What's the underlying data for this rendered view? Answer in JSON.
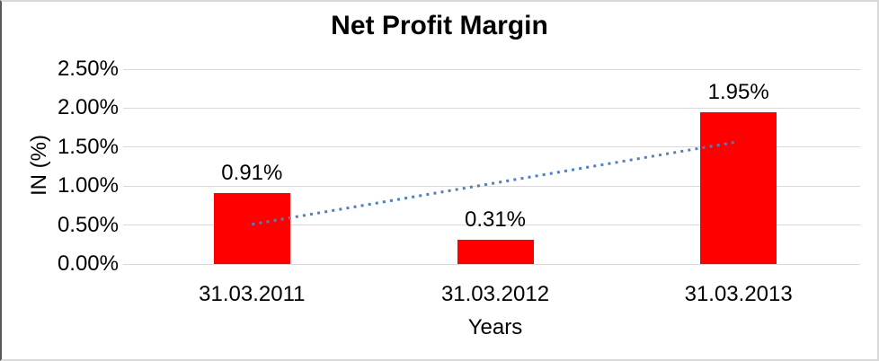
{
  "chart_data": {
    "type": "bar",
    "title": "Net Profit Margin",
    "xlabel": "Years",
    "ylabel": "IN (%)",
    "categories": [
      "31.03.2011",
      "31.03.2012",
      "31.03.2013"
    ],
    "values": [
      0.91,
      0.31,
      1.95
    ],
    "data_labels": [
      "0.91%",
      "0.31%",
      "1.95%"
    ],
    "ylim": [
      0,
      2.5
    ],
    "yticks": [
      0,
      0.5,
      1.0,
      1.5,
      2.0,
      2.5
    ],
    "ytick_labels": [
      "0.00%",
      "0.50%",
      "1.00%",
      "1.50%",
      "2.00%",
      "2.50%"
    ],
    "grid": true,
    "legend": false,
    "bar_color": "#ff0000",
    "gridline_color": "#d9d9d9",
    "trendline": {
      "style": "dotted",
      "color": "#4f81bd",
      "from": {
        "category_index": 0,
        "value": 0.51
      },
      "to": {
        "category_index": 2,
        "value": 1.56
      }
    }
  }
}
